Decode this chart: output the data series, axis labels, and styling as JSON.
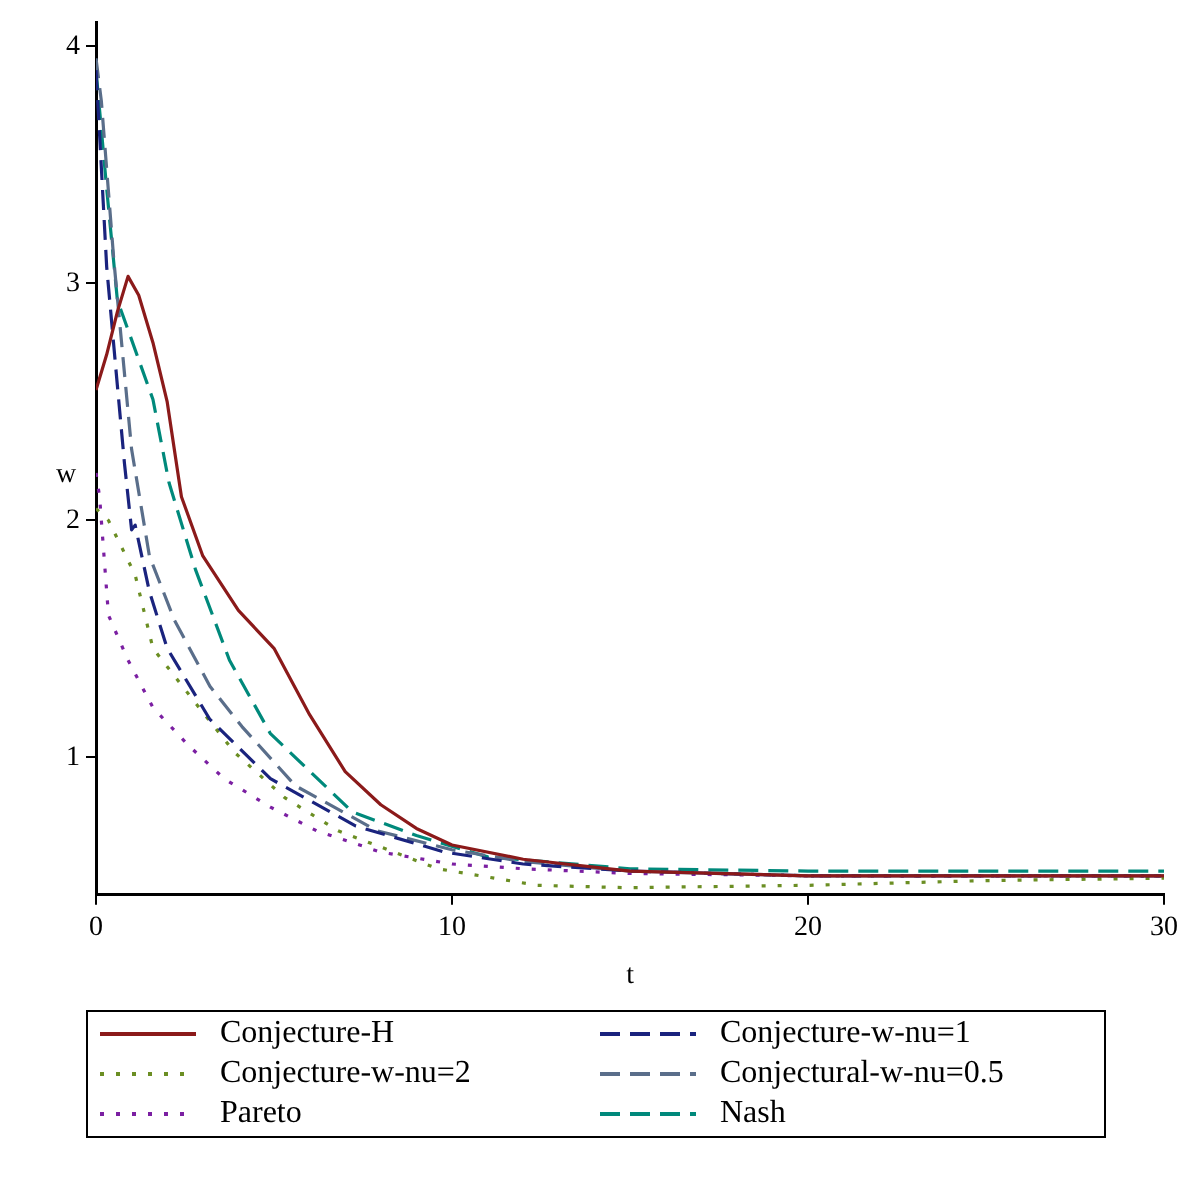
{
  "chart_data": {
    "type": "line",
    "xlabel": "t",
    "ylabel": "w",
    "xlim": [
      0,
      30
    ],
    "ylim": [
      0.42,
      4.1
    ],
    "xticks": [
      0,
      10,
      20,
      30
    ],
    "yticks": [
      1,
      2,
      3,
      4
    ],
    "grid": false,
    "legend": "bottom",
    "marker": "none",
    "series": [
      {
        "name": "Conjecture-H",
        "color": "#8b1a1a",
        "line_style": "solid",
        "x": [
          0,
          0.3,
          0.6,
          0.9,
          1.2,
          1.6,
          2,
          2.4,
          3,
          4,
          5,
          6,
          7,
          8,
          9,
          10,
          12,
          15,
          20,
          25,
          30
        ],
        "values": [
          2.55,
          2.7,
          2.88,
          3.03,
          2.95,
          2.75,
          2.5,
          2.1,
          1.85,
          1.62,
          1.46,
          1.18,
          0.94,
          0.8,
          0.7,
          0.63,
          0.57,
          0.52,
          0.5,
          0.5,
          0.5
        ]
      },
      {
        "name": "Conjecture-w-nu=1",
        "color": "#1a237e",
        "line_style": "dashed",
        "x": [
          0,
          0.1,
          0.3,
          0.6,
          0.8,
          1,
          1.1,
          1.5,
          2,
          3.2,
          4.9,
          7.3,
          9.8,
          12,
          15,
          20,
          25,
          30
        ],
        "values": [
          3.9,
          3.63,
          3.07,
          2.57,
          2.24,
          1.96,
          1.98,
          1.7,
          1.46,
          1.16,
          0.91,
          0.71,
          0.6,
          0.55,
          0.52,
          0.5,
          0.5,
          0.5
        ]
      },
      {
        "name": "Conjecture-w-nu=2",
        "color": "#6b8e23",
        "line_style": "dotted",
        "x": [
          0,
          0.35,
          1.1,
          1.6,
          3,
          3.9,
          5.3,
          6.8,
          9.6,
          12.4,
          14.9,
          20,
          25,
          30
        ],
        "values": [
          2.05,
          2,
          1.77,
          1.46,
          1.19,
          1.02,
          0.83,
          0.69,
          0.53,
          0.46,
          0.45,
          0.46,
          0.48,
          0.49
        ]
      },
      {
        "name": "Conjectural-w-nu=0.5",
        "color": "#5a6e8a",
        "line_style": "dashed",
        "x": [
          0,
          0.15,
          0.5,
          1,
          1.5,
          2.2,
          3.2,
          4.1,
          5.6,
          7.9,
          10,
          12,
          15,
          20,
          25,
          30
        ],
        "values": [
          3.95,
          3.77,
          3.1,
          2.3,
          1.85,
          1.58,
          1.3,
          1.13,
          0.88,
          0.69,
          0.61,
          0.56,
          0.52,
          0.5,
          0.5,
          0.5
        ]
      },
      {
        "name": "Pareto",
        "color": "#7b1fa2",
        "line_style": "dotted",
        "x": [
          0,
          0.1,
          0.35,
          0.9,
          1.6,
          2.6,
          3.6,
          4.9,
          6.2,
          8,
          10,
          12,
          15,
          20,
          25,
          30
        ],
        "values": [
          2.2,
          2.1,
          1.6,
          1.41,
          1.21,
          1.05,
          0.91,
          0.79,
          0.69,
          0.6,
          0.55,
          0.53,
          0.51,
          0.5,
          0.5,
          0.5
        ]
      },
      {
        "name": "Nash",
        "color": "#00897b",
        "line_style": "dashed",
        "x": [
          0,
          0.3,
          0.6,
          1.6,
          2.05,
          2.8,
          3.75,
          4.9,
          7.2,
          9,
          11,
          15,
          20,
          25,
          30
        ],
        "values": [
          3.9,
          3.4,
          2.93,
          2.51,
          2.16,
          1.79,
          1.41,
          1.1,
          0.77,
          0.67,
          0.58,
          0.53,
          0.52,
          0.52,
          0.52
        ]
      }
    ]
  }
}
